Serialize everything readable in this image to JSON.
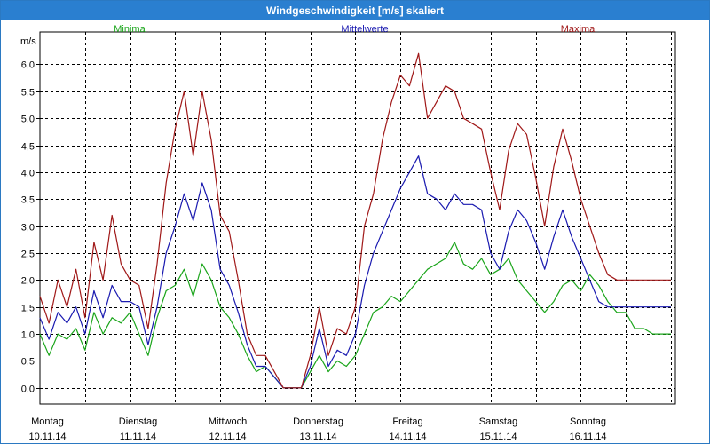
{
  "window": {
    "title": "Windgeschwindigkeit [m/s] skaliert"
  },
  "chart_data": {
    "type": "line",
    "title": "Windgeschwindigkeit [m/s] skaliert",
    "ylabel": "m/s",
    "xlabel": "",
    "ylim": [
      -0.3,
      6.6
    ],
    "xlim": [
      0,
      7.05
    ],
    "yticks": [
      0,
      0.5,
      1,
      1.5,
      2,
      2.5,
      3,
      3.5,
      4,
      4.5,
      5,
      5.5,
      6
    ],
    "yticklabels": [
      "0,0",
      "0,5",
      "1,0",
      "1,5",
      "2,0",
      "2,5",
      "3,0",
      "3,5",
      "4,0",
      "4,5",
      "5,0",
      "5,5",
      "6,0"
    ],
    "xgrid": [
      0.5,
      1,
      1.5,
      2,
      2.5,
      3,
      3.5,
      4,
      4.5,
      5,
      5.5,
      6,
      6.5,
      7
    ],
    "xticks": [
      {
        "pos": 0,
        "day": "Montag",
        "date": "10.11.14"
      },
      {
        "pos": 1,
        "day": "Dienstag",
        "date": "11.11.14"
      },
      {
        "pos": 2,
        "day": "Mittwoch",
        "date": "12.11.14"
      },
      {
        "pos": 3,
        "day": "Donnerstag",
        "date": "13.11.14"
      },
      {
        "pos": 4,
        "day": "Freitag",
        "date": "14.11.14"
      },
      {
        "pos": 5,
        "day": "Samstag",
        "date": "15.11.14"
      },
      {
        "pos": 6,
        "day": "Sonntag",
        "date": "16.11.14"
      }
    ],
    "grid": true,
    "legend_position": "top",
    "x": [
      0,
      0.1,
      0.2,
      0.3,
      0.4,
      0.5,
      0.6,
      0.7,
      0.8,
      0.9,
      1.0,
      1.1,
      1.2,
      1.3,
      1.4,
      1.5,
      1.6,
      1.7,
      1.8,
      1.9,
      2.0,
      2.1,
      2.2,
      2.3,
      2.4,
      2.5,
      2.6,
      2.7,
      2.8,
      2.9,
      3.0,
      3.1,
      3.2,
      3.3,
      3.4,
      3.5,
      3.6,
      3.7,
      3.8,
      3.9,
      4.0,
      4.1,
      4.2,
      4.3,
      4.4,
      4.5,
      4.6,
      4.7,
      4.8,
      4.9,
      5.0,
      5.1,
      5.2,
      5.3,
      5.4,
      5.5,
      5.6,
      5.7,
      5.8,
      5.9,
      6.0,
      6.1,
      6.2,
      6.3,
      6.4,
      6.5,
      6.6,
      6.7,
      6.8,
      6.9,
      7.0
    ],
    "series": [
      {
        "name": "Minima",
        "color": "#1aa51a",
        "values": [
          1.0,
          0.6,
          1.0,
          0.9,
          1.1,
          0.7,
          1.4,
          1.0,
          1.3,
          1.2,
          1.4,
          1.0,
          0.6,
          1.3,
          1.8,
          1.9,
          2.2,
          1.7,
          2.3,
          2.0,
          1.5,
          1.3,
          1.0,
          0.6,
          0.3,
          0.4,
          0.2,
          0.0,
          0.0,
          0.0,
          0.3,
          0.6,
          0.3,
          0.5,
          0.4,
          0.6,
          1.0,
          1.4,
          1.5,
          1.7,
          1.6,
          1.8,
          2.0,
          2.2,
          2.3,
          2.4,
          2.7,
          2.3,
          2.2,
          2.4,
          2.1,
          2.2,
          2.4,
          2.0,
          1.8,
          1.6,
          1.4,
          1.6,
          1.9,
          2.0,
          1.8,
          2.1,
          1.9,
          1.6,
          1.4,
          1.4,
          1.1,
          1.1,
          1.0,
          1.0,
          1.0
        ]
      },
      {
        "name": "Mittelwerte",
        "color": "#1a1ab0",
        "values": [
          1.3,
          0.9,
          1.4,
          1.2,
          1.5,
          1.0,
          1.8,
          1.3,
          1.9,
          1.6,
          1.6,
          1.5,
          0.8,
          1.5,
          2.5,
          3.0,
          3.6,
          3.1,
          3.8,
          3.3,
          2.2,
          1.9,
          1.4,
          0.8,
          0.4,
          0.4,
          0.2,
          0.0,
          0.0,
          0.0,
          0.4,
          1.1,
          0.4,
          0.7,
          0.6,
          1.0,
          1.9,
          2.5,
          2.9,
          3.3,
          3.7,
          4.0,
          4.3,
          3.6,
          3.5,
          3.3,
          3.6,
          3.4,
          3.4,
          3.3,
          2.5,
          2.2,
          2.9,
          3.3,
          3.1,
          2.7,
          2.2,
          2.8,
          3.3,
          2.8,
          2.4,
          2.0,
          1.6,
          1.5,
          1.5,
          1.5,
          1.5,
          1.5,
          1.5,
          1.5,
          1.5
        ]
      },
      {
        "name": "Maxima",
        "color": "#a01818",
        "values": [
          1.7,
          1.2,
          2.0,
          1.5,
          2.2,
          1.3,
          2.7,
          2.0,
          3.2,
          2.3,
          2.0,
          1.9,
          1.1,
          2.3,
          3.8,
          4.8,
          5.5,
          4.3,
          5.5,
          4.6,
          3.2,
          2.9,
          2.0,
          1.0,
          0.6,
          0.6,
          0.3,
          0.0,
          0.0,
          0.0,
          0.6,
          1.5,
          0.6,
          1.1,
          1.0,
          1.5,
          3.0,
          3.6,
          4.6,
          5.3,
          5.8,
          5.6,
          6.2,
          5.0,
          5.3,
          5.6,
          5.5,
          5.0,
          4.9,
          4.8,
          4.0,
          3.3,
          4.4,
          4.9,
          4.7,
          3.9,
          3.0,
          4.1,
          4.8,
          4.2,
          3.5,
          3.0,
          2.5,
          2.1,
          2.0,
          2.0,
          2.0,
          2.0,
          2.0,
          2.0,
          2.0
        ]
      }
    ]
  }
}
